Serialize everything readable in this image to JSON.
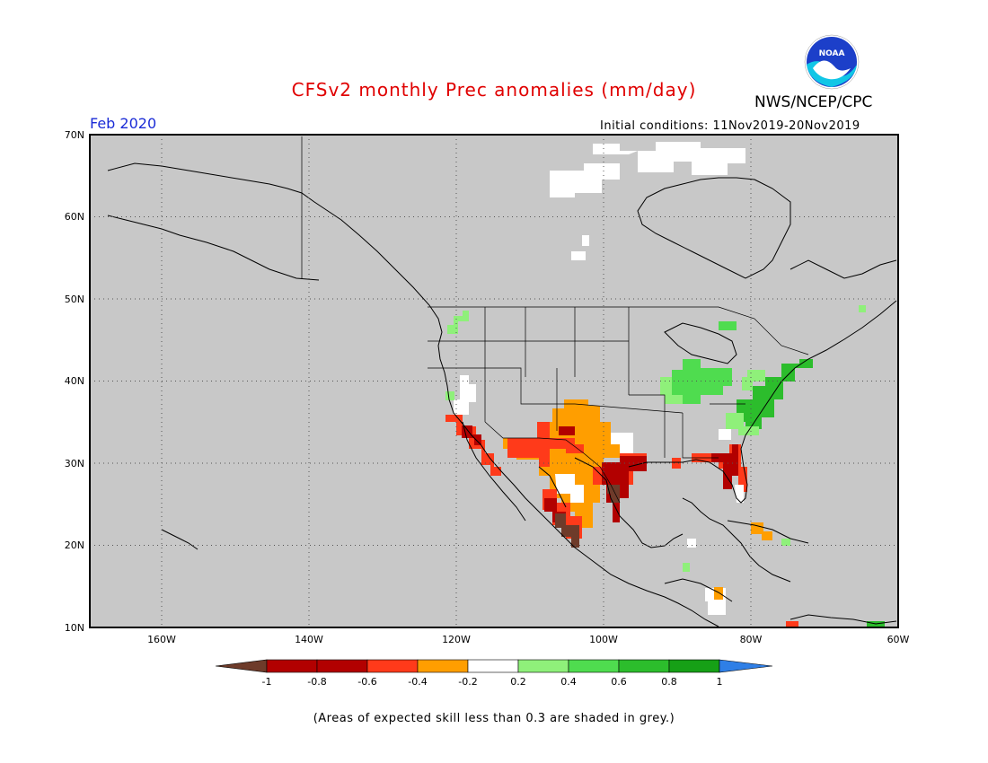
{
  "header": {
    "title": "CFSv2 monthly Prec anomalies (mm/day)",
    "valid_month": "Feb 2020",
    "initial_conditions": "Initial conditions: 11Nov2019-20Nov2019",
    "agency": "NWS/NCEP/CPC",
    "logo_text": "NOAA"
  },
  "axes": {
    "lat_labels": [
      "70N",
      "60N",
      "50N",
      "40N",
      "30N",
      "20N",
      "10N"
    ],
    "lon_labels": [
      "160W",
      "140W",
      "120W",
      "100W",
      "80W",
      "60W"
    ]
  },
  "colorbar": {
    "labels": [
      "-1",
      "-0.8",
      "-0.6",
      "-0.4",
      "-0.2",
      "0.2",
      "0.4",
      "0.6",
      "0.8",
      "1"
    ],
    "colors": [
      "#6e3b2a",
      "#b20000",
      "#ff3a1a",
      "#ff9e00",
      "#ffffff",
      "#8ff07a",
      "#4fdc4f",
      "#2cbd2c",
      "#16a016",
      "#2f7fe6"
    ]
  },
  "footnote": "(Areas of expected skill less than 0.3 are shaded in grey.)",
  "colors": {
    "no_skill": "#c8c8c8",
    "dry_strong": "#6e3b2a",
    "dry": "#b20000",
    "dry_mod": "#ff3a1a",
    "dry_light": "#ff9e00",
    "neutral": "#ffffff",
    "wet_light": "#8ff07a",
    "wet_mod": "#4fdc4f",
    "wet": "#2cbd2c"
  }
}
